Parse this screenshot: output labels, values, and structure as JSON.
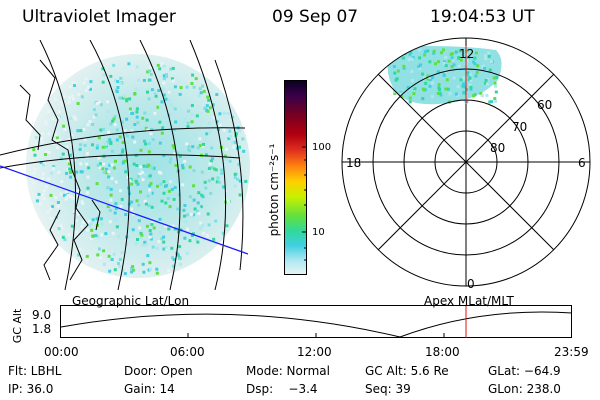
{
  "header": {
    "title": "Ultraviolet Imager",
    "date": "09 Sep 07",
    "time": "19:04:53 UT"
  },
  "colorbar": {
    "label": "photon cm⁻²s⁻¹",
    "ticks": [
      "100",
      "10"
    ]
  },
  "polar_plot": {
    "label": "Apex MLat/MLT",
    "mlt_labels": {
      "top": "12",
      "left": "18",
      "right": "6",
      "bottom": "0"
    },
    "lat_labels": [
      "60",
      "70",
      "80"
    ]
  },
  "geo_plot": {
    "label": "Geographic Lat/Lon"
  },
  "altitude_plot": {
    "ylabel": "GC Alt",
    "yticks": [
      "9.0",
      "1.8"
    ],
    "xticks": [
      "00:00",
      "06:00",
      "12:00",
      "18:00",
      "23:59"
    ]
  },
  "info": {
    "row1": {
      "flt": "Flt: LBHL",
      "door": "Door: Open",
      "mode": "Mode: Normal",
      "gcalt": "GC Alt: 5.6 Re",
      "glat": "GLat: −64.9"
    },
    "row2": {
      "ip": "IP: 36.0",
      "gain": "Gain: 14",
      "dsp": "Dsp:    −3.4",
      "seq": "Seq: 39",
      "glon": "GLon: 238.0"
    }
  },
  "colors": {
    "accent_line": "#1a1aff",
    "marker": "#e01010",
    "cmap": [
      "#0a0020",
      "#3a004a",
      "#780020",
      "#b20010",
      "#e03020",
      "#ff8010",
      "#ffd000",
      "#c8f000",
      "#60e040",
      "#30d8a0",
      "#40d0e0",
      "#b0e8f0",
      "#e8f4f6"
    ]
  }
}
